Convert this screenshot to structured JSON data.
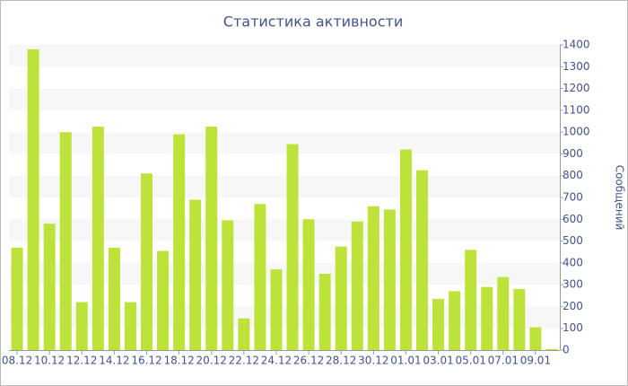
{
  "chart_data": {
    "type": "bar",
    "title": "Статистика активности",
    "y_label": "Сообщений",
    "categories": [
      "08.12",
      null,
      "10.12",
      null,
      "12.12",
      null,
      "14.12",
      null,
      "16.12",
      null,
      "18.12",
      null,
      "20.12",
      null,
      "22.12",
      null,
      "24.12",
      null,
      "26.12",
      null,
      "28.12",
      null,
      "30.12",
      null,
      "01.01",
      null,
      "03.01",
      null,
      "05.01",
      null,
      "07.01",
      null,
      "09.01",
      null
    ],
    "values": [
      470,
      1380,
      580,
      1000,
      220,
      1025,
      470,
      220,
      810,
      455,
      990,
      690,
      1025,
      595,
      145,
      670,
      370,
      945,
      600,
      350,
      475,
      590,
      660,
      645,
      920,
      825,
      235,
      270,
      460,
      290,
      335,
      280,
      105,
      5
    ],
    "color": "#bde33a",
    "ylim": [
      0,
      1400
    ],
    "yticks": [
      0,
      100,
      200,
      300,
      400,
      500,
      600,
      700,
      800,
      900,
      1000,
      1100,
      1200,
      1300,
      1400
    ],
    "grid": true
  }
}
